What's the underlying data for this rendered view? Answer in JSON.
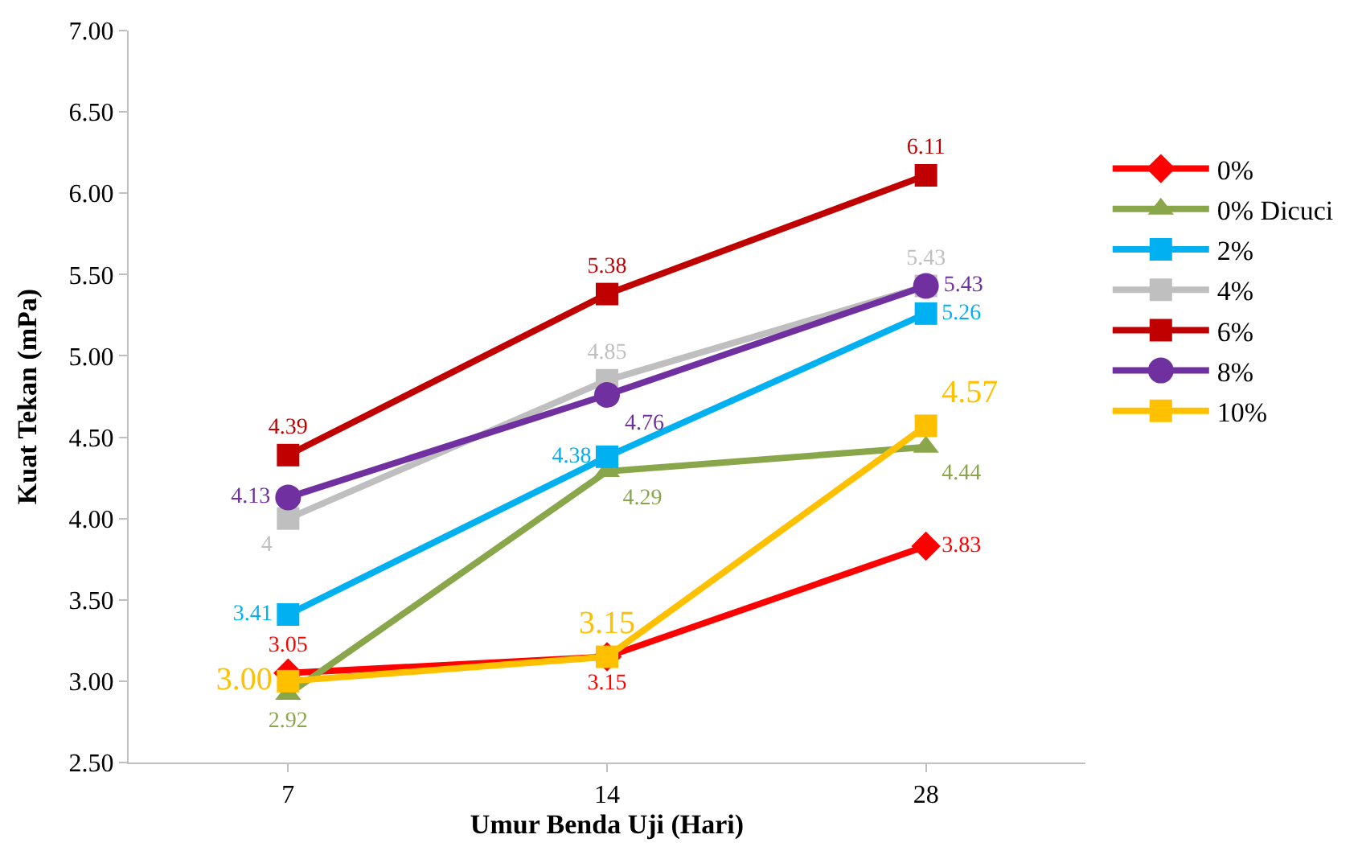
{
  "chart_data": {
    "type": "line",
    "xlabel": "Umur Benda Uji (Hari)",
    "ylabel": "Kuat Tekan (mPa)",
    "categories": [
      "7",
      "14",
      "28"
    ],
    "ylim": [
      2.5,
      7.0
    ],
    "yticks": [
      {
        "value": 2.5,
        "label": "2.50"
      },
      {
        "value": 3.0,
        "label": "3.00"
      },
      {
        "value": 3.5,
        "label": "3.50"
      },
      {
        "value": 4.0,
        "label": "4.00"
      },
      {
        "value": 4.5,
        "label": "4.50"
      },
      {
        "value": 5.0,
        "label": "5.00"
      },
      {
        "value": 5.5,
        "label": "5.50"
      },
      {
        "value": 6.0,
        "label": "6.00"
      },
      {
        "value": 6.5,
        "label": "6.50"
      },
      {
        "value": 7.0,
        "label": "7.00"
      }
    ],
    "legend": "right",
    "line_style": "solid",
    "series": [
      {
        "name": "0%",
        "color": "#ff0000",
        "marker": "diamond",
        "values": [
          3.05,
          3.15,
          3.83
        ],
        "value_labels": [
          "3.05",
          "3.15",
          "3.83"
        ]
      },
      {
        "name": "0% Dicuci",
        "color": "#8aa64a",
        "marker": "triangle",
        "values": [
          2.92,
          4.29,
          4.44
        ],
        "value_labels": [
          "2.92",
          "4.29",
          "4.44"
        ]
      },
      {
        "name": "2%",
        "color": "#00b0f0",
        "marker": "square",
        "values": [
          3.41,
          4.38,
          5.26
        ],
        "value_labels": [
          "3.41",
          "4.38",
          "5.26"
        ]
      },
      {
        "name": "4%",
        "color": "#bfbfbf",
        "marker": "square",
        "values": [
          4.0,
          4.85,
          5.43
        ],
        "value_labels": [
          "4",
          "4.85",
          "5.43"
        ]
      },
      {
        "name": "6%",
        "color": "#c00000",
        "marker": "square",
        "values": [
          4.39,
          5.38,
          6.11
        ],
        "value_labels": [
          "4.39",
          "5.38",
          "6.11"
        ]
      },
      {
        "name": "8%",
        "color": "#7030a0",
        "marker": "circle",
        "values": [
          4.13,
          4.76,
          5.43
        ],
        "value_labels": [
          "4.13",
          "4.76",
          "5.43"
        ]
      },
      {
        "name": "10%",
        "color": "#ffc000",
        "marker": "square",
        "values": [
          3.0,
          3.15,
          4.57
        ],
        "value_labels": [
          "3.00",
          "3.15",
          "4.57"
        ]
      }
    ]
  }
}
